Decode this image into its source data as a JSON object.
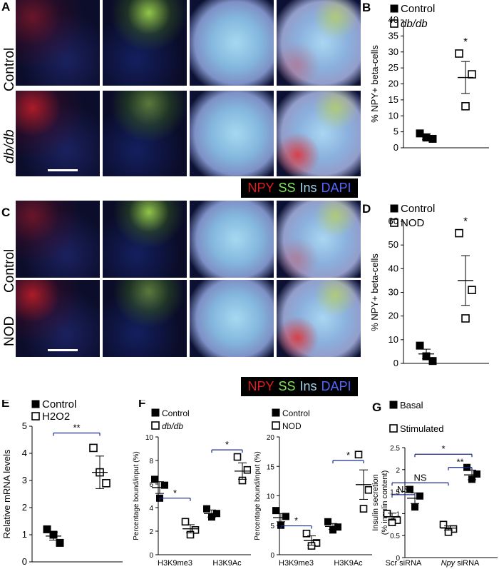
{
  "panels": {
    "A": {
      "letter": "A",
      "rows": [
        "Control",
        "db/db"
      ]
    },
    "C": {
      "letter": "C",
      "rows": [
        "Control",
        "NOD"
      ]
    },
    "legend_channels": [
      {
        "label": "NPY",
        "color": "#e01b1b"
      },
      {
        "label": "SS",
        "color": "#7ee65a"
      },
      {
        "label": "Ins",
        "color": "#9fd3ee"
      },
      {
        "label": "DAPI",
        "color": "#2b3fd8"
      }
    ]
  },
  "chart_data": [
    {
      "id": "B",
      "letter": "B",
      "type": "scatter",
      "legend": [
        {
          "label": "Control",
          "marker": "filled-square"
        },
        {
          "label": "db/db",
          "marker": "open-square",
          "italic": true
        }
      ],
      "ylabel": "% NPY+ beta-cells",
      "yticks": [
        0,
        5,
        10,
        15,
        20,
        25,
        30,
        35,
        40
      ],
      "ylim": [
        0,
        40
      ],
      "groups": [
        {
          "name": "Control",
          "values": [
            4.5,
            2.8,
            3.2
          ],
          "mean": 3.5,
          "sem": 0.9,
          "marker": "filled"
        },
        {
          "name": "db/db",
          "values": [
            29.5,
            23.0,
            13.0
          ],
          "mean": 22.0,
          "sem": 5.0,
          "marker": "open"
        }
      ],
      "annotations": [
        {
          "text": "*",
          "group": 1
        }
      ]
    },
    {
      "id": "D",
      "letter": "D",
      "type": "scatter",
      "legend": [
        {
          "label": "Control",
          "marker": "filled-square"
        },
        {
          "label": "NOD",
          "marker": "open-square"
        }
      ],
      "ylabel": "% NPY+ beta-cells",
      "yticks": [
        0,
        10,
        20,
        30,
        40,
        50,
        60
      ],
      "ylim": [
        0,
        60
      ],
      "groups": [
        {
          "name": "Control",
          "values": [
            7.5,
            1.0,
            3.0
          ],
          "mean": 4.0,
          "sem": 2.0,
          "marker": "filled"
        },
        {
          "name": "NOD",
          "values": [
            55.0,
            31.0,
            19.0
          ],
          "mean": 35.0,
          "sem": 10.5,
          "marker": "open"
        }
      ],
      "annotations": [
        {
          "text": "*",
          "group": 1
        }
      ]
    },
    {
      "id": "E",
      "letter": "E",
      "type": "scatter",
      "legend": [
        {
          "label": "Control",
          "marker": "filled-square"
        },
        {
          "label": "H2O2",
          "marker": "open-square"
        }
      ],
      "ylabel": "Relative mRNA levels",
      "yticks": [
        0,
        1,
        2,
        3,
        4,
        5
      ],
      "ylim": [
        0,
        5
      ],
      "groups": [
        {
          "name": "Control",
          "values": [
            1.2,
            1.0,
            0.7
          ],
          "mean": 0.95,
          "sem": 0.15,
          "marker": "filled"
        },
        {
          "name": "H2O2",
          "values": [
            4.2,
            3.3,
            2.9
          ],
          "mean": 3.3,
          "sem": 0.6,
          "marker": "open"
        }
      ],
      "comparisons": [
        {
          "g1": 0,
          "g2": 1,
          "text": "**",
          "y": 4.75
        }
      ]
    },
    {
      "id": "F1",
      "letter": "F",
      "type": "scatter",
      "legend": [
        {
          "label": "Control",
          "marker": "filled-square"
        },
        {
          "label": "db/db",
          "marker": "open-square",
          "italic": true
        }
      ],
      "ylabel": "Percentage bound/input (%)",
      "yticks": [
        0,
        2,
        4,
        6,
        8,
        10
      ],
      "ylim": [
        0,
        10
      ],
      "xgroups": [
        "H3K9me3",
        "H3K9Ac"
      ],
      "groups": [
        {
          "name": "Control",
          "xgroup": 0,
          "values": [
            6.4,
            5.9,
            4.8
          ],
          "mean": 5.7,
          "sem": 0.5,
          "marker": "filled"
        },
        {
          "name": "db/db",
          "xgroup": 0,
          "values": [
            2.8,
            2.1,
            1.7
          ],
          "mean": 2.2,
          "sem": 0.35,
          "marker": "open"
        },
        {
          "name": "Control",
          "xgroup": 1,
          "values": [
            3.9,
            3.5,
            3.2
          ],
          "mean": 3.5,
          "sem": 0.3,
          "marker": "filled"
        },
        {
          "name": "db/db",
          "xgroup": 1,
          "values": [
            8.3,
            7.2,
            6.3
          ],
          "mean": 7.1,
          "sem": 0.7,
          "marker": "open"
        }
      ],
      "comparisons": [
        {
          "g1": 0,
          "g2": 1,
          "text": "*",
          "y": 4.8
        },
        {
          "g1": 2,
          "g2": 3,
          "text": "*",
          "y": 8.9
        }
      ]
    },
    {
      "id": "F2",
      "letter": "",
      "type": "scatter",
      "legend": [
        {
          "label": "Control",
          "marker": "filled-square"
        },
        {
          "label": "NOD",
          "marker": "open-square"
        }
      ],
      "ylabel": "Percentage bound/input (%)",
      "yticks": [
        0,
        5,
        10,
        15,
        20
      ],
      "ylim": [
        0,
        20
      ],
      "xgroups": [
        "H3K9me3",
        "H3K9Ac"
      ],
      "groups": [
        {
          "name": "Control",
          "xgroup": 0,
          "values": [
            7.5,
            6.5,
            5.0
          ],
          "mean": 6.3,
          "sem": 0.7,
          "marker": "filled"
        },
        {
          "name": "NOD",
          "xgroup": 0,
          "values": [
            3.6,
            2.0,
            1.5
          ],
          "mean": 2.4,
          "sem": 0.8,
          "marker": "open"
        },
        {
          "name": "Control",
          "xgroup": 1,
          "values": [
            5.6,
            4.7,
            4.2
          ],
          "mean": 4.8,
          "sem": 0.5,
          "marker": "filled"
        },
        {
          "name": "NOD",
          "xgroup": 1,
          "values": [
            17.0,
            11.0,
            7.8
          ],
          "mean": 11.9,
          "sem": 2.5,
          "marker": "open"
        }
      ],
      "comparisons": [
        {
          "g1": 0,
          "g2": 1,
          "text": "*",
          "y": 4.9
        },
        {
          "g1": 2,
          "g2": 3,
          "text": "*",
          "y": 16.0
        }
      ]
    },
    {
      "id": "G",
      "letter": "G",
      "type": "scatter",
      "legend": [
        {
          "label": "Basal",
          "marker": "filled-square"
        },
        {
          "label": "Stimulated",
          "marker": "open-square"
        }
      ],
      "ylabel": "Insulin secretion (% insulin content)",
      "ylabel_lines": [
        "Insulin secretion",
        "(% insulin content)"
      ],
      "yticks": [
        0,
        0.5,
        1,
        1.5,
        2,
        2.5
      ],
      "ytick_labels": [
        "0",
        "0.5",
        "1",
        "1.5",
        "2",
        "2.5"
      ],
      "ylim": [
        0,
        2.5
      ],
      "xgroups": [
        "Scr siRNA",
        "Npy siRNA"
      ],
      "xgroup_italic_prefix": [
        false,
        true
      ],
      "groups": [
        {
          "name": "Basal",
          "xgroup": 0,
          "values": [
            1.0,
            0.85,
            0.8
          ],
          "mean": 0.93,
          "sem": 0.08,
          "marker": "open"
        },
        {
          "name": "Stimulated",
          "xgroup": 0,
          "values": [
            1.55,
            1.4,
            1.15
          ],
          "mean": 1.35,
          "sem": 0.12,
          "marker": "filled"
        },
        {
          "name": "Basal",
          "xgroup": 1,
          "values": [
            0.75,
            0.65,
            0.58
          ],
          "mean": 0.67,
          "sem": 0.05,
          "marker": "open"
        },
        {
          "name": "Stimulated",
          "xgroup": 1,
          "values": [
            2.05,
            1.9,
            1.78
          ],
          "mean": 1.88,
          "sem": 0.11,
          "marker": "filled"
        }
      ],
      "comparisons": [
        {
          "g1": 0,
          "g2": 2,
          "text": "NS",
          "y": 1.7
        },
        {
          "g1": 0,
          "g2": 1,
          "text": "NS",
          "y": 1.43
        },
        {
          "g1": 2,
          "g2": 3,
          "text": "**",
          "y": 2.05
        },
        {
          "g1": 1,
          "g2": 3,
          "text": "*",
          "y": 2.35
        }
      ]
    }
  ]
}
